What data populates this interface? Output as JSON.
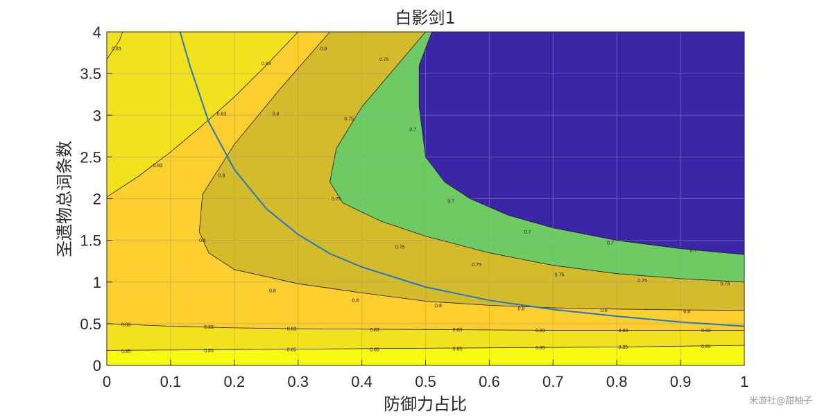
{
  "chart_data": {
    "type": "contour",
    "title": "白影剑1",
    "xlabel": "防御力占比",
    "ylabel": "圣遗物总词条数",
    "xlim": [
      0,
      1
    ],
    "ylim": [
      0,
      4
    ],
    "x_ticks": [
      "0",
      "0.1",
      "0.2",
      "0.3",
      "0.4",
      "0.5",
      "0.6",
      "0.7",
      "0.8",
      "0.9",
      "1"
    ],
    "y_ticks": [
      "0",
      "0.5",
      "1",
      "1.5",
      "2",
      "2.5",
      "3",
      "3.5",
      "4"
    ],
    "grid": true,
    "contour_levels": [
      0.7,
      0.75,
      0.8,
      0.83,
      0.85
    ],
    "level_labels": [
      "0.7",
      "0.75",
      "0.8",
      "0.83",
      "0.85"
    ],
    "fill_colors": {
      "below_0.7": "#3b26a8",
      "0.7_to_0.75": "#6ecb63",
      "0.75_to_0.8": "#d4bb2c",
      "0.8_to_0.83": "#fcce2e",
      "0.83_to_0.85": "#f2e21e",
      "above_0.85": "#f9fb0e"
    },
    "contours": [
      {
        "level": 0.85,
        "points": [
          [
            0,
            0.18
          ],
          [
            0.2,
            0.19
          ],
          [
            0.4,
            0.2
          ],
          [
            0.6,
            0.21
          ],
          [
            0.8,
            0.22
          ],
          [
            1,
            0.24
          ]
        ]
      },
      {
        "level": 0.83,
        "points": [
          [
            0,
            0.5
          ],
          [
            0.1,
            0.47
          ],
          [
            0.2,
            0.45
          ],
          [
            0.3,
            0.44
          ],
          [
            0.5,
            0.43
          ],
          [
            0.7,
            0.42
          ],
          [
            1,
            0.42
          ]
        ]
      },
      {
        "level": 0.83,
        "points": [
          [
            0,
            2.02
          ],
          [
            0.05,
            2.27
          ],
          [
            0.1,
            2.56
          ],
          [
            0.15,
            2.88
          ],
          [
            0.2,
            3.22
          ],
          [
            0.25,
            3.6
          ],
          [
            0.3,
            4.0
          ]
        ]
      },
      {
        "level": 0.83,
        "points": [
          [
            0,
            3.67
          ],
          [
            0.02,
            3.9
          ],
          [
            0.025,
            4.0
          ]
        ]
      },
      {
        "level": 0.8,
        "points": [
          [
            0.35,
            4.0
          ],
          [
            0.27,
            3.3
          ],
          [
            0.2,
            2.65
          ],
          [
            0.15,
            2.05
          ],
          [
            0.145,
            1.6
          ],
          [
            0.16,
            1.35
          ],
          [
            0.2,
            1.15
          ],
          [
            0.3,
            0.98
          ],
          [
            0.4,
            0.87
          ],
          [
            0.5,
            0.77
          ],
          [
            0.6,
            0.72
          ],
          [
            0.7,
            0.69
          ],
          [
            0.8,
            0.675
          ],
          [
            0.9,
            0.665
          ],
          [
            1,
            0.66
          ]
        ]
      },
      {
        "level": 0.75,
        "points": [
          [
            0.5,
            4.0
          ],
          [
            0.4,
            3.1
          ],
          [
            0.36,
            2.6
          ],
          [
            0.35,
            2.2
          ],
          [
            0.37,
            1.95
          ],
          [
            0.43,
            1.73
          ],
          [
            0.5,
            1.55
          ],
          [
            0.6,
            1.35
          ],
          [
            0.7,
            1.2
          ],
          [
            0.8,
            1.1
          ],
          [
            0.9,
            1.04
          ],
          [
            1,
            1.0
          ]
        ]
      },
      {
        "level": 0.7,
        "points": [
          [
            0.51,
            4.0
          ],
          [
            0.49,
            3.6
          ],
          [
            0.49,
            3.1
          ],
          [
            0.5,
            2.5
          ],
          [
            0.53,
            2.2
          ],
          [
            0.57,
            2.0
          ],
          [
            0.63,
            1.8
          ],
          [
            0.7,
            1.65
          ],
          [
            0.8,
            1.5
          ],
          [
            0.9,
            1.4
          ],
          [
            1,
            1.33
          ]
        ]
      }
    ],
    "contour_label_positions": [
      {
        "text": "0.85",
        "x": 0.03,
        "y": 0.17
      },
      {
        "text": "0.85",
        "x": 0.16,
        "y": 0.18
      },
      {
        "text": "0.85",
        "x": 0.29,
        "y": 0.19
      },
      {
        "text": "0.85",
        "x": 0.42,
        "y": 0.19
      },
      {
        "text": "0.85",
        "x": 0.55,
        "y": 0.2
      },
      {
        "text": "0.85",
        "x": 0.68,
        "y": 0.21
      },
      {
        "text": "0.85",
        "x": 0.81,
        "y": 0.22
      },
      {
        "text": "0.85",
        "x": 0.94,
        "y": 0.23
      },
      {
        "text": "0.83",
        "x": 0.03,
        "y": 0.49
      },
      {
        "text": "0.83",
        "x": 0.16,
        "y": 0.46
      },
      {
        "text": "0.83",
        "x": 0.29,
        "y": 0.44
      },
      {
        "text": "0.83",
        "x": 0.42,
        "y": 0.43
      },
      {
        "text": "0.83",
        "x": 0.55,
        "y": 0.43
      },
      {
        "text": "0.83",
        "x": 0.68,
        "y": 0.42
      },
      {
        "text": "0.83",
        "x": 0.81,
        "y": 0.42
      },
      {
        "text": "0.83",
        "x": 0.94,
        "y": 0.42
      },
      {
        "text": "0.83",
        "x": 0.08,
        "y": 2.4
      },
      {
        "text": "0.83",
        "x": 0.18,
        "y": 3.02
      },
      {
        "text": "0.83",
        "x": 0.25,
        "y": 3.62
      },
      {
        "text": "0.83",
        "x": 0.015,
        "y": 3.8
      },
      {
        "text": "0.8",
        "x": 0.15,
        "y": 1.5
      },
      {
        "text": "0.8",
        "x": 0.18,
        "y": 2.28
      },
      {
        "text": "0.8",
        "x": 0.265,
        "y": 3.02
      },
      {
        "text": "0.8",
        "x": 0.34,
        "y": 3.8
      },
      {
        "text": "0.8",
        "x": 0.26,
        "y": 0.9
      },
      {
        "text": "0.8",
        "x": 0.39,
        "y": 0.78
      },
      {
        "text": "0.8",
        "x": 0.52,
        "y": 0.72
      },
      {
        "text": "0.8",
        "x": 0.65,
        "y": 0.68
      },
      {
        "text": "0.8",
        "x": 0.78,
        "y": 0.66
      },
      {
        "text": "0.8",
        "x": 0.91,
        "y": 0.65
      },
      {
        "text": "0.75",
        "x": 0.36,
        "y": 2.0
      },
      {
        "text": "0.75",
        "x": 0.38,
        "y": 2.96
      },
      {
        "text": "0.75",
        "x": 0.435,
        "y": 3.67
      },
      {
        "text": "0.75",
        "x": 0.46,
        "y": 1.42
      },
      {
        "text": "0.75",
        "x": 0.58,
        "y": 1.21
      },
      {
        "text": "0.75",
        "x": 0.71,
        "y": 1.09
      },
      {
        "text": "0.75",
        "x": 0.84,
        "y": 1.02
      },
      {
        "text": "0.75",
        "x": 0.97,
        "y": 0.98
      },
      {
        "text": "0.7",
        "x": 0.48,
        "y": 2.83
      },
      {
        "text": "0.7",
        "x": 0.54,
        "y": 1.97
      },
      {
        "text": "0.7",
        "x": 0.66,
        "y": 1.6
      },
      {
        "text": "0.7",
        "x": 0.79,
        "y": 1.47
      },
      {
        "text": "0.7",
        "x": 0.92,
        "y": 1.38
      }
    ],
    "series": [
      {
        "color": "#1f77c8",
        "x": [
          0.115,
          0.13,
          0.16,
          0.2,
          0.25,
          0.3,
          0.35,
          0.4,
          0.5,
          0.6,
          0.7,
          0.8,
          0.9,
          1.0
        ],
        "y": [
          4.0,
          3.6,
          2.92,
          2.35,
          1.88,
          1.57,
          1.34,
          1.18,
          0.94,
          0.78,
          0.67,
          0.59,
          0.52,
          0.47
        ]
      }
    ]
  },
  "watermark": "米游社@甜柚子"
}
